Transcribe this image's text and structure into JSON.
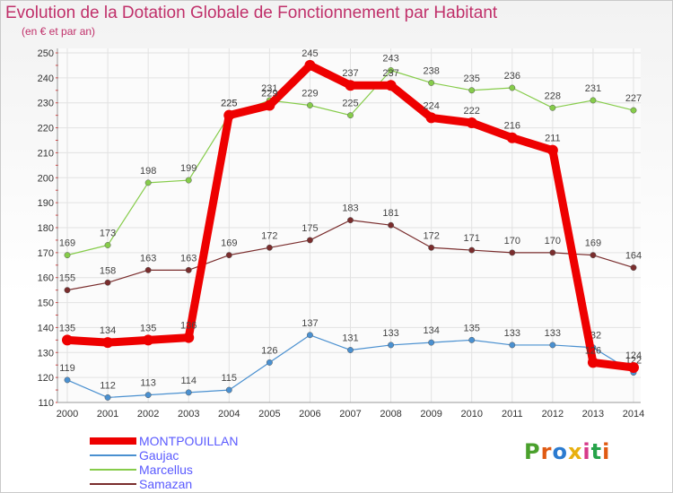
{
  "title": "Evolution de la Dotation Globale de Fonctionnement par Habitant",
  "subtitle": "(en € et par an)",
  "logo": {
    "text": "Proxiti",
    "letters": [
      "P",
      "r",
      "o",
      "x",
      "i",
      "t",
      "i"
    ],
    "colors": [
      "#4aa02c",
      "#e05a12",
      "#2b7bd0",
      "#e8b010",
      "#d63a8a",
      "#27a34a",
      "#e05a12"
    ]
  },
  "chart_data": {
    "type": "line",
    "title": "Evolution de la Dotation Globale de Fonctionnement par Habitant",
    "subtitle": "(en € et par an)",
    "x": [
      "2000",
      "2001",
      "2002",
      "2003",
      "2004",
      "2005",
      "2006",
      "2007",
      "2008",
      "2009",
      "2010",
      "2011",
      "2012",
      "2013",
      "2014"
    ],
    "ylim": [
      110,
      250
    ],
    "yticks": [
      110,
      120,
      130,
      140,
      150,
      160,
      170,
      180,
      190,
      200,
      210,
      220,
      230,
      240,
      250
    ],
    "grid": true,
    "legend": "bottom-left",
    "series": [
      {
        "name": "Samazan",
        "color": "#7a2d2d",
        "values": [
          155,
          158,
          163,
          163,
          169,
          172,
          175,
          183,
          181,
          172,
          171,
          170,
          170,
          169,
          164
        ]
      },
      {
        "name": "Marcellus",
        "color": "#86cc4a",
        "values": [
          169,
          173,
          198,
          199,
          225,
          231,
          229,
          225,
          243,
          238,
          235,
          236,
          228,
          231,
          227
        ]
      },
      {
        "name": "Gaujac",
        "color": "#4a90d0",
        "values": [
          119,
          112,
          113,
          114,
          115,
          126,
          137,
          131,
          133,
          134,
          135,
          133,
          133,
          132,
          122
        ]
      },
      {
        "name": "MONTPOUILLAN",
        "color": "#ee0000",
        "values": [
          135,
          134,
          135,
          136,
          225,
          229,
          245,
          237,
          237,
          224,
          222,
          216,
          211,
          126,
          124
        ]
      }
    ]
  },
  "legend_items": [
    {
      "name": "MONTPOUILLAN",
      "color": "#ee0000",
      "text_color": "#5a5aff",
      "thick": true
    },
    {
      "name": "Gaujac",
      "color": "#4a90d0",
      "text_color": "#5a5aff",
      "thick": false
    },
    {
      "name": "Marcellus",
      "color": "#86cc4a",
      "text_color": "#5a5aff",
      "thick": false
    },
    {
      "name": "Samazan",
      "color": "#7a2d2d",
      "text_color": "#5a5aff",
      "thick": false
    }
  ]
}
